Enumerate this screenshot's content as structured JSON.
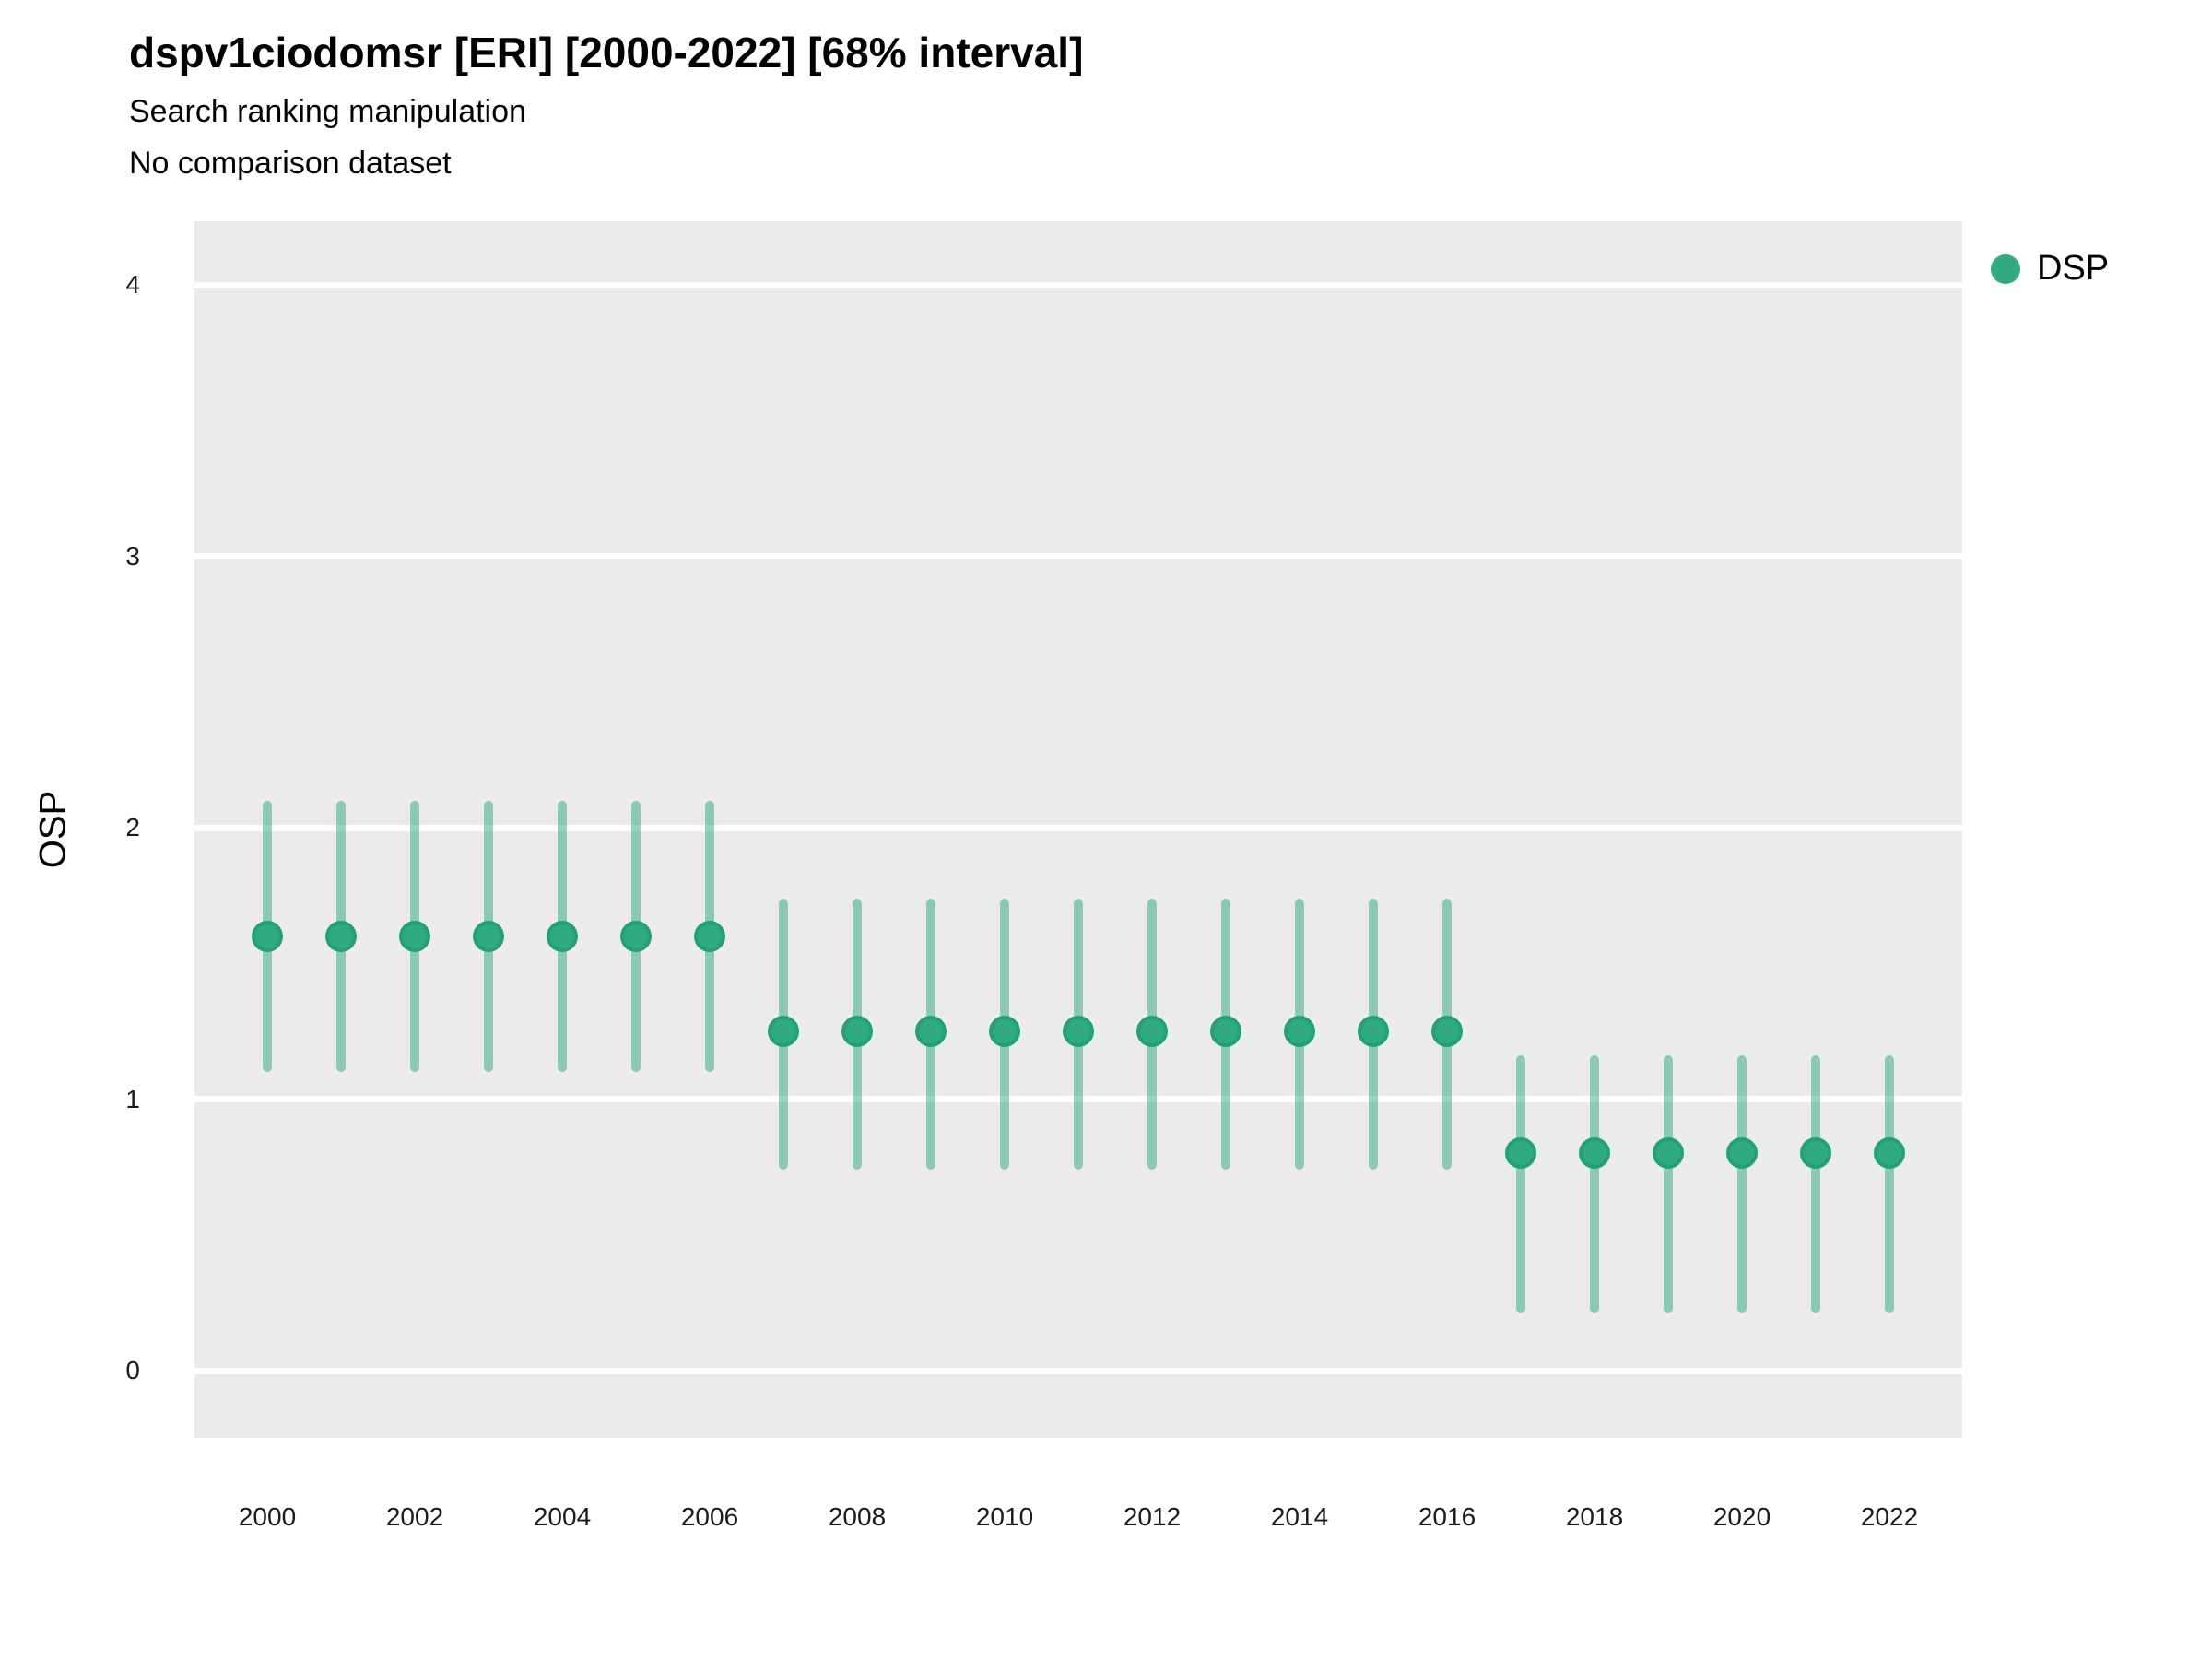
{
  "title": "dspv1ciodomsr [ERI] [2000-2022] [68% interval]",
  "subtitle": "Search ranking manipulation",
  "note": "No comparison dataset",
  "legend": {
    "label": "DSP"
  },
  "y_axis": {
    "label": "OSP",
    "ticks": [
      0,
      1,
      2,
      3,
      4
    ],
    "range": [
      -0.25,
      4.23
    ]
  },
  "x_axis": {
    "ticks": [
      2000,
      2002,
      2004,
      2006,
      2008,
      2010,
      2012,
      2014,
      2016,
      2018,
      2020,
      2022
    ],
    "range": [
      2000,
      2022
    ]
  },
  "colors": {
    "point_fill": "#30aa82",
    "point_border": "#24a078",
    "interval_line": "rgba(27,158,119,0.45)",
    "panel_background": "#ebebeb",
    "gridline": "#ffffff",
    "text": "#000000"
  },
  "chart_data": {
    "type": "scatter",
    "title": "dspv1ciodomsr [ERI] [2000-2022] [68% interval]",
    "subtitle": "Search ranking manipulation",
    "note": "No comparison dataset",
    "series_name": "DSP",
    "interval_label": "68% interval",
    "xlabel": "",
    "ylabel": "OSP",
    "ylim": [
      -0.25,
      4.23
    ],
    "grid": "horizontal-major-only",
    "legend_position": "right",
    "points": [
      {
        "year": 2000,
        "mid": 1.6,
        "lo": 1.1,
        "hi": 2.1
      },
      {
        "year": 2001,
        "mid": 1.6,
        "lo": 1.1,
        "hi": 2.1
      },
      {
        "year": 2002,
        "mid": 1.6,
        "lo": 1.1,
        "hi": 2.1
      },
      {
        "year": 2003,
        "mid": 1.6,
        "lo": 1.1,
        "hi": 2.1
      },
      {
        "year": 2004,
        "mid": 1.6,
        "lo": 1.1,
        "hi": 2.1
      },
      {
        "year": 2005,
        "mid": 1.6,
        "lo": 1.1,
        "hi": 2.1
      },
      {
        "year": 2006,
        "mid": 1.6,
        "lo": 1.1,
        "hi": 2.1
      },
      {
        "year": 2007,
        "mid": 1.25,
        "lo": 0.74,
        "hi": 1.74
      },
      {
        "year": 2008,
        "mid": 1.25,
        "lo": 0.74,
        "hi": 1.74
      },
      {
        "year": 2009,
        "mid": 1.25,
        "lo": 0.74,
        "hi": 1.74
      },
      {
        "year": 2010,
        "mid": 1.25,
        "lo": 0.74,
        "hi": 1.74
      },
      {
        "year": 2011,
        "mid": 1.25,
        "lo": 0.74,
        "hi": 1.74
      },
      {
        "year": 2012,
        "mid": 1.25,
        "lo": 0.74,
        "hi": 1.74
      },
      {
        "year": 2013,
        "mid": 1.25,
        "lo": 0.74,
        "hi": 1.74
      },
      {
        "year": 2014,
        "mid": 1.25,
        "lo": 0.74,
        "hi": 1.74
      },
      {
        "year": 2015,
        "mid": 1.25,
        "lo": 0.74,
        "hi": 1.74
      },
      {
        "year": 2016,
        "mid": 1.25,
        "lo": 0.74,
        "hi": 1.74
      },
      {
        "year": 2017,
        "mid": 0.8,
        "lo": 0.21,
        "hi": 1.16
      },
      {
        "year": 2018,
        "mid": 0.8,
        "lo": 0.21,
        "hi": 1.16
      },
      {
        "year": 2019,
        "mid": 0.8,
        "lo": 0.21,
        "hi": 1.16
      },
      {
        "year": 2020,
        "mid": 0.8,
        "lo": 0.21,
        "hi": 1.16
      },
      {
        "year": 2021,
        "mid": 0.8,
        "lo": 0.21,
        "hi": 1.16
      },
      {
        "year": 2022,
        "mid": 0.8,
        "lo": 0.21,
        "hi": 1.16
      }
    ]
  }
}
